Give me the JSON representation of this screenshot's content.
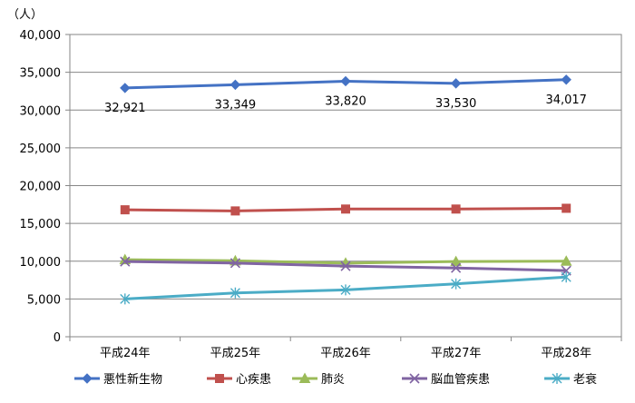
{
  "chart_data": {
    "type": "line",
    "unit_label": "（人）",
    "categories": [
      "平成24年",
      "平成25年",
      "平成26年",
      "平成27年",
      "平成28年"
    ],
    "ylim": [
      0,
      40000
    ],
    "yticks": [
      0,
      5000,
      10000,
      15000,
      20000,
      25000,
      30000,
      35000,
      40000
    ],
    "ytick_labels": [
      "0",
      "5,000",
      "10,000",
      "15,000",
      "20,000",
      "25,000",
      "30,000",
      "35,000",
      "40,000"
    ],
    "grid": true,
    "legend_position": "bottom",
    "series": [
      {
        "name": "悪性新生物",
        "color": "#4472C4",
        "marker": "diamond",
        "values": [
          32921,
          33349,
          33820,
          33530,
          34017
        ],
        "data_labels": [
          "32,921",
          "33,349",
          "33,820",
          "33,530",
          "34,017"
        ]
      },
      {
        "name": "心疾患",
        "color": "#C0504D",
        "marker": "square",
        "values": [
          16800,
          16650,
          16900,
          16900,
          17000
        ]
      },
      {
        "name": "肺炎",
        "color": "#9BBB59",
        "marker": "triangle",
        "values": [
          10200,
          10050,
          9750,
          9950,
          10000
        ]
      },
      {
        "name": "脳血管疾患",
        "color": "#8064A2",
        "marker": "x",
        "values": [
          9950,
          9750,
          9350,
          9100,
          8750
        ]
      },
      {
        "name": "老衰",
        "color": "#4BACC6",
        "marker": "star",
        "values": [
          5000,
          5800,
          6200,
          7000,
          7900
        ]
      }
    ]
  }
}
